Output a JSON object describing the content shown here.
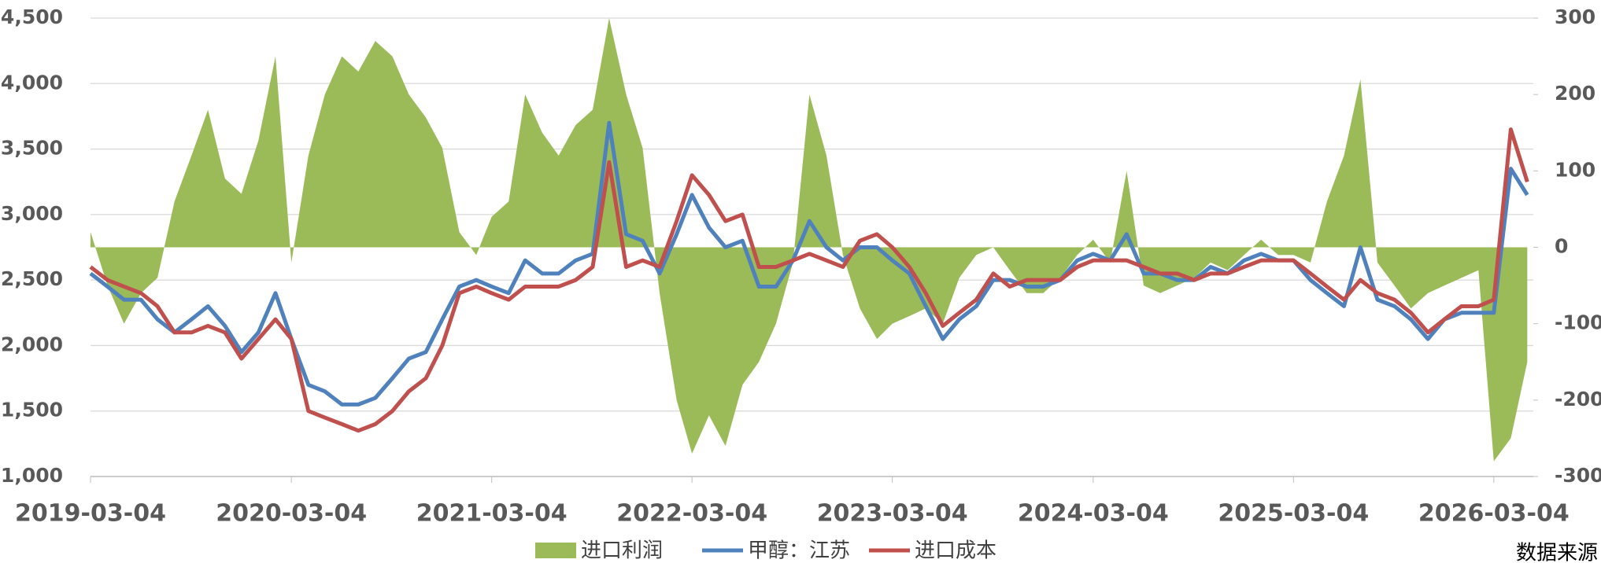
{
  "chart_data": {
    "type": "line",
    "x": [
      "2019-03-04",
      "2019-04-04",
      "2019-05-04",
      "2019-06-04",
      "2019-07-04",
      "2019-08-04",
      "2019-09-04",
      "2019-10-04",
      "2019-11-04",
      "2019-12-04",
      "2020-01-04",
      "2020-02-04",
      "2020-03-04",
      "2020-04-04",
      "2020-05-04",
      "2020-06-04",
      "2020-07-04",
      "2020-08-04",
      "2020-09-04",
      "2020-10-04",
      "2020-11-04",
      "2020-12-04",
      "2021-01-04",
      "2021-02-04",
      "2021-03-04",
      "2021-04-04",
      "2021-05-04",
      "2021-06-04",
      "2021-07-04",
      "2021-08-04",
      "2021-09-04",
      "2021-10-04",
      "2021-11-04",
      "2021-12-04",
      "2022-01-04",
      "2022-02-04",
      "2022-03-04",
      "2022-04-04",
      "2022-05-04",
      "2022-06-04",
      "2022-07-04",
      "2022-08-04",
      "2022-09-04",
      "2022-10-04",
      "2022-11-04",
      "2022-12-04",
      "2023-01-04",
      "2023-02-04",
      "2023-03-04",
      "2023-04-04",
      "2023-05-04",
      "2023-06-04",
      "2023-07-04",
      "2023-08-04",
      "2023-09-04",
      "2023-10-04",
      "2023-11-04",
      "2023-12-04",
      "2024-01-04",
      "2024-02-04",
      "2024-03-04",
      "2024-04-04",
      "2024-05-04",
      "2024-06-04",
      "2024-07-04",
      "2024-08-04",
      "2024-09-04",
      "2024-10-04",
      "2024-11-04",
      "2024-12-04",
      "2025-01-04",
      "2025-02-04",
      "2025-03-04",
      "2025-04-04",
      "2025-05-04",
      "2025-06-04",
      "2025-07-04",
      "2025-08-04",
      "2025-09-04",
      "2025-10-04",
      "2025-11-04",
      "2025-12-04",
      "2026-01-04",
      "2026-02-04",
      "2026-03-04",
      "2026-04-04",
      "2026-05-04"
    ],
    "series": [
      {
        "name": "进口利润",
        "color": "#9bbb59",
        "axis": "y2",
        "type": "area",
        "values": [
          20,
          -50,
          -100,
          -60,
          -40,
          60,
          120,
          180,
          90,
          70,
          140,
          250,
          -20,
          120,
          200,
          250,
          230,
          270,
          250,
          200,
          170,
          130,
          20,
          -10,
          40,
          60,
          200,
          150,
          120,
          160,
          180,
          300,
          200,
          130,
          -60,
          -200,
          -270,
          -220,
          -260,
          -180,
          -150,
          -100,
          -20,
          200,
          120,
          -10,
          -80,
          -120,
          -100,
          -90,
          -80,
          -100,
          -40,
          -10,
          0,
          -30,
          -60,
          -60,
          -40,
          -10,
          10,
          -20,
          100,
          -50,
          -60,
          -50,
          -40,
          -20,
          -30,
          -10,
          10,
          -10,
          -10,
          -20,
          60,
          120,
          220,
          -20,
          -50,
          -80,
          -60,
          -50,
          -40,
          -30,
          -280,
          -250,
          -150
        ]
      },
      {
        "name": "甲醇：江苏",
        "color": "#4f81bd",
        "type": "line",
        "values": [
          2550,
          2450,
          2350,
          2350,
          2200,
          2100,
          2200,
          2300,
          2150,
          1950,
          2100,
          2400,
          2050,
          1700,
          1650,
          1550,
          1550,
          1600,
          1750,
          1900,
          1950,
          2200,
          2450,
          2500,
          2450,
          2400,
          2650,
          2550,
          2550,
          2650,
          2700,
          3700,
          2850,
          2800,
          2550,
          2850,
          3150,
          2900,
          2750,
          2800,
          2450,
          2450,
          2650,
          2950,
          2750,
          2650,
          2750,
          2750,
          2650,
          2550,
          2300,
          2050,
          2200,
          2300,
          2500,
          2500,
          2450,
          2450,
          2500,
          2650,
          2700,
          2650,
          2850,
          2550,
          2550,
          2500,
          2500,
          2600,
          2550,
          2650,
          2700,
          2650,
          2650,
          2500,
          2400,
          2300,
          2750,
          2350,
          2300,
          2200,
          2050,
          2200,
          2250,
          2250,
          2250,
          3350,
          3150
        ]
      },
      {
        "name": "进口成本",
        "color": "#c0504d",
        "type": "line",
        "values": [
          2600,
          2500,
          2450,
          2400,
          2300,
          2100,
          2100,
          2150,
          2100,
          1900,
          2050,
          2200,
          2050,
          1500,
          1450,
          1400,
          1350,
          1400,
          1500,
          1650,
          1750,
          2000,
          2400,
          2450,
          2400,
          2350,
          2450,
          2450,
          2450,
          2500,
          2600,
          3400,
          2600,
          2650,
          2600,
          2950,
          3300,
          3150,
          2950,
          3000,
          2600,
          2600,
          2650,
          2700,
          2650,
          2600,
          2800,
          2850,
          2750,
          2600,
          2400,
          2150,
          2250,
          2350,
          2550,
          2450,
          2500,
          2500,
          2500,
          2600,
          2650,
          2650,
          2650,
          2600,
          2550,
          2550,
          2500,
          2550,
          2550,
          2600,
          2650,
          2650,
          2650,
          2550,
          2450,
          2350,
          2500,
          2400,
          2350,
          2250,
          2100,
          2200,
          2300,
          2300,
          2350,
          3650,
          3250
        ]
      }
    ],
    "xlim": [
      "2019-03-04",
      "2026-05-15"
    ],
    "xticks": [
      "2019-03-04",
      "2020-03-04",
      "2021-03-04",
      "2022-03-04",
      "2023-03-04",
      "2024-03-04",
      "2025-03-04",
      "2026-03-04"
    ],
    "ylim": [
      1000,
      4500
    ],
    "yticks": [
      {
        "value": 1000,
        "label": "1,000"
      },
      {
        "value": 1500,
        "label": "1,500"
      },
      {
        "value": 2000,
        "label": "2,000"
      },
      {
        "value": 2500,
        "label": "2,500"
      },
      {
        "value": 3000,
        "label": "3,000"
      },
      {
        "value": 3500,
        "label": "3,500"
      },
      {
        "value": 4000,
        "label": "4,000"
      },
      {
        "value": 4500,
        "label": "4,500"
      }
    ],
    "y2lim": [
      -300,
      300
    ],
    "y2ticks": [
      -300,
      -200,
      -100,
      0,
      100,
      200,
      300
    ],
    "grid": true,
    "legend": "bottom",
    "source": "数据来源"
  }
}
